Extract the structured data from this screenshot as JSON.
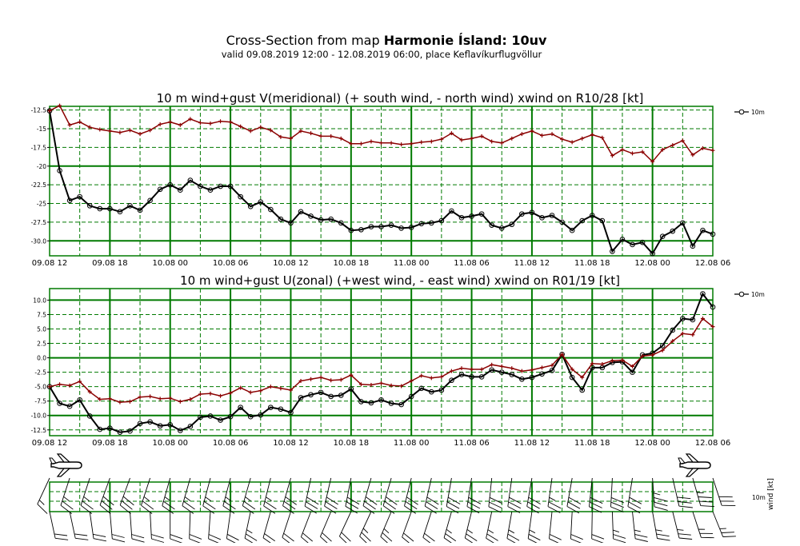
{
  "header": {
    "title_prefix": "Cross-Section from map ",
    "title_bold": "Harmonie Ísland: 10uv",
    "subtitle": "valid 09.08.2019 12:00 - 12.08.2019 06:00, place Keflavíkurflugvöllur"
  },
  "colors": {
    "grid": "#007a00",
    "wind": "#000000",
    "gust": "#8b0000",
    "barb": "#000000"
  },
  "chart_data": [
    {
      "type": "line",
      "title": "10 m wind+gust V(meridional) (+ south wind, - north wind) xwind on R10/28 [kt]",
      "x_ticks": [
        "09.08 12",
        "09.08 18",
        "10.08 00",
        "10.08 06",
        "10.08 12",
        "10.08 18",
        "11.08 00",
        "11.08 06",
        "11.08 12",
        "11.08 18",
        "12.08 00",
        "12.08 06"
      ],
      "x_range_hours": [
        0,
        66
      ],
      "ylim": [
        -32.0,
        -12.0
      ],
      "y_ticks": [
        -12.5,
        -15.0,
        -17.5,
        -20.0,
        -22.5,
        -25.0,
        -27.5,
        -30.0
      ],
      "y_tick_labels": [
        "-12.5",
        "-15",
        "-17.5",
        "-20",
        "-22.5",
        "-25",
        "-27.5",
        "-30.0"
      ],
      "legend": "10m",
      "series": [
        {
          "role": "wind",
          "name": "10m",
          "values": [
            -12.6,
            -20.6,
            -24.6,
            -24.1,
            -25.3,
            -25.7,
            -25.7,
            -26.1,
            -25.3,
            -25.9,
            -24.6,
            -23.1,
            -22.5,
            -23.2,
            -21.9,
            -22.7,
            -23.2,
            -22.7,
            -22.7,
            -24.1,
            -25.4,
            -24.8,
            -25.8,
            -27.1,
            -27.6,
            -26.1,
            -26.7,
            -27.2,
            -27.1,
            -27.6,
            -28.6,
            -28.5,
            -28.1,
            -28.1,
            -27.9,
            -28.3,
            -28.2,
            -27.7,
            -27.6,
            -27.3,
            -26.0,
            -26.9,
            -26.7,
            -26.4,
            -27.9,
            -28.3,
            -27.8,
            -26.4,
            -26.2,
            -26.9,
            -26.6,
            -27.5,
            -28.6,
            -27.3,
            -26.6,
            -27.3,
            -31.4,
            -29.8,
            -30.5,
            -30.2,
            -31.7,
            -29.4,
            -28.7,
            -27.6,
            -30.7,
            -28.6,
            -29.1
          ]
        },
        {
          "role": "gust",
          "name": "",
          "values": [
            -12.6,
            -11.9,
            -14.5,
            -14.1,
            -14.8,
            -15.1,
            -15.3,
            -15.5,
            -15.2,
            -15.7,
            -15.2,
            -14.4,
            -14.1,
            -14.5,
            -13.7,
            -14.2,
            -14.3,
            -14.0,
            -14.1,
            -14.7,
            -15.3,
            -14.8,
            -15.2,
            -16.1,
            -16.3,
            -15.3,
            -15.6,
            -16.0,
            -16.0,
            -16.3,
            -17.0,
            -17.0,
            -16.7,
            -16.9,
            -16.9,
            -17.1,
            -17.0,
            -16.8,
            -16.7,
            -16.4,
            -15.6,
            -16.5,
            -16.3,
            -16.0,
            -16.7,
            -16.9,
            -16.3,
            -15.7,
            -15.3,
            -15.9,
            -15.7,
            -16.4,
            -16.8,
            -16.3,
            -15.8,
            -16.2,
            -18.6,
            -17.8,
            -18.3,
            -18.1,
            -19.4,
            -17.8,
            -17.2,
            -16.6,
            -18.5,
            -17.6,
            -17.9
          ]
        }
      ]
    },
    {
      "type": "line",
      "title": "10 m wind+gust U(zonal) (+west wind, - east wind) xwind on R01/19 [kt]",
      "x_ticks": [
        "09.08 12",
        "09.08 18",
        "10.08 00",
        "10.08 06",
        "10.08 12",
        "10.08 18",
        "11.08 00",
        "11.08 06",
        "11.08 12",
        "11.08 18",
        "12.08 00",
        "12.08 06"
      ],
      "x_range_hours": [
        0,
        66
      ],
      "ylim": [
        -13.5,
        12.0
      ],
      "y_ticks": [
        10.0,
        7.5,
        5.0,
        2.5,
        0.0,
        -2.5,
        -5.0,
        -7.5,
        -10.0,
        -12.5
      ],
      "y_tick_labels": [
        "10.0",
        "7.5",
        "5.0",
        "2.5",
        "0.0",
        "-2.5",
        "-5.0",
        "-7.5",
        "-10.0",
        "-12.5"
      ],
      "legend": "10m",
      "series": [
        {
          "role": "wind",
          "name": "10m",
          "values": [
            -5.0,
            -7.9,
            -8.4,
            -7.3,
            -10.1,
            -12.4,
            -12.2,
            -12.9,
            -12.7,
            -11.4,
            -11.1,
            -11.8,
            -11.6,
            -12.6,
            -11.9,
            -10.3,
            -10.1,
            -10.8,
            -10.2,
            -8.6,
            -10.2,
            -9.9,
            -8.6,
            -8.9,
            -9.5,
            -6.9,
            -6.4,
            -6.0,
            -6.7,
            -6.5,
            -5.4,
            -7.6,
            -7.8,
            -7.3,
            -7.9,
            -8.1,
            -6.7,
            -5.3,
            -5.9,
            -5.6,
            -3.9,
            -2.9,
            -3.3,
            -3.3,
            -2.1,
            -2.5,
            -2.9,
            -3.7,
            -3.4,
            -2.8,
            -2.2,
            0.6,
            -3.4,
            -5.6,
            -1.7,
            -1.7,
            -0.8,
            -0.7,
            -2.5,
            0.5,
            0.8,
            2.1,
            4.8,
            6.8,
            6.6,
            11.1,
            8.8
          ]
        },
        {
          "role": "gust",
          "name": "",
          "values": [
            -5.0,
            -4.6,
            -4.8,
            -4.1,
            -5.9,
            -7.2,
            -7.1,
            -7.7,
            -7.6,
            -6.8,
            -6.7,
            -7.1,
            -7.0,
            -7.6,
            -7.2,
            -6.3,
            -6.2,
            -6.6,
            -6.1,
            -5.2,
            -6.0,
            -5.7,
            -5.0,
            -5.3,
            -5.6,
            -4.0,
            -3.7,
            -3.4,
            -3.9,
            -3.8,
            -3.0,
            -4.6,
            -4.7,
            -4.4,
            -4.8,
            -4.9,
            -4.0,
            -3.1,
            -3.5,
            -3.3,
            -2.3,
            -1.8,
            -2.0,
            -2.0,
            -1.2,
            -1.5,
            -1.8,
            -2.3,
            -2.1,
            -1.7,
            -1.3,
            0.6,
            -2.0,
            -3.4,
            -1.0,
            -1.1,
            -0.5,
            -0.4,
            -1.5,
            0.3,
            0.5,
            1.3,
            2.9,
            4.2,
            4.0,
            6.8,
            5.4
          ]
        }
      ]
    },
    {
      "type": "wind-barbs",
      "legend": [
        "10m",
        "wind [kt]"
      ],
      "rows": [
        {
          "row": "top",
          "direction_deg": [
            205,
            200,
            198,
            196,
            198,
            200,
            200,
            202,
            200,
            200,
            198,
            196,
            196,
            198,
            196,
            195,
            195,
            196,
            195,
            193,
            196,
            196,
            194,
            195,
            196,
            192,
            192,
            192,
            193,
            193,
            191,
            196,
            196,
            195,
            196,
            196,
            194,
            192,
            193,
            193,
            190,
            188,
            189,
            189,
            186,
            187,
            188,
            190,
            190,
            189,
            188,
            181,
            190,
            194,
            186,
            186,
            183,
            182,
            189,
            178,
            176,
            173,
            167,
            165,
            164,
            158,
            162
          ],
          "speed_kt": [
            14,
            22,
            26,
            25,
            27,
            28,
            28,
            29,
            28,
            28,
            27,
            26,
            25,
            26,
            25,
            25,
            25,
            25,
            25,
            26,
            27,
            27,
            27,
            28,
            29,
            28,
            28,
            28,
            28,
            28,
            29,
            30,
            30,
            30,
            30,
            30,
            29,
            29,
            29,
            29,
            28,
            28,
            28,
            28,
            28,
            29,
            29,
            28,
            28,
            28,
            27,
            28,
            29,
            30,
            28,
            28,
            32,
            31,
            31,
            31,
            33,
            31,
            30,
            29,
            33,
            31,
            31
          ]
        },
        {
          "row": "bottom",
          "direction_deg": [
            168,
            166,
            168,
            170,
            172,
            174,
            175,
            176,
            176,
            176,
            177,
            178,
            180,
            181,
            182,
            183,
            184,
            186,
            188,
            190,
            192,
            194,
            196,
            197,
            198,
            200,
            201,
            202,
            203,
            204,
            205,
            206,
            205,
            204,
            203,
            202,
            200,
            199,
            198,
            197,
            196,
            195,
            194,
            193,
            192,
            191,
            190,
            189,
            188,
            187,
            186,
            184,
            183,
            182,
            181,
            180,
            178,
            176,
            174,
            172,
            170,
            168,
            166,
            164,
            162,
            160,
            158
          ],
          "speed_kt": [
            22,
            21,
            21,
            20,
            20,
            21,
            21,
            22,
            22,
            22,
            21,
            21,
            20,
            20,
            20,
            21,
            21,
            22,
            22,
            22,
            23,
            23,
            22,
            22,
            22,
            21,
            21,
            21,
            21,
            22,
            22,
            22,
            23,
            23,
            23,
            22,
            22,
            22,
            22,
            23,
            23,
            23,
            23,
            24,
            24,
            24,
            24,
            23,
            23,
            23,
            22,
            22,
            22,
            22,
            22,
            22,
            23,
            23,
            23,
            23,
            24,
            24,
            24,
            24,
            24,
            25,
            25
          ]
        }
      ]
    }
  ]
}
